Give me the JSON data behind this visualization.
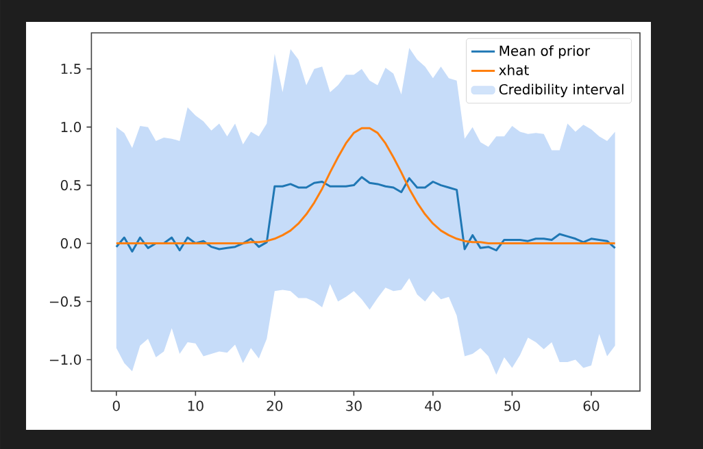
{
  "chart_data": {
    "type": "line",
    "x": [
      0,
      1,
      2,
      3,
      4,
      5,
      6,
      7,
      8,
      9,
      10,
      11,
      12,
      13,
      14,
      15,
      16,
      17,
      18,
      19,
      20,
      21,
      22,
      23,
      24,
      25,
      26,
      27,
      28,
      29,
      30,
      31,
      32,
      33,
      34,
      35,
      36,
      37,
      38,
      39,
      40,
      41,
      42,
      43,
      44,
      45,
      46,
      47,
      48,
      49,
      50,
      51,
      52,
      53,
      54,
      55,
      56,
      57,
      58,
      59,
      60,
      61,
      62,
      63
    ],
    "series": [
      {
        "name": "Mean of prior",
        "color": "#1f77b4",
        "values": [
          -0.03,
          0.05,
          -0.07,
          0.05,
          -0.04,
          0.0,
          0.0,
          0.05,
          -0.06,
          0.05,
          0.0,
          0.02,
          -0.03,
          -0.05,
          -0.04,
          -0.03,
          0.0,
          0.04,
          -0.03,
          0.01,
          0.49,
          0.49,
          0.51,
          0.48,
          0.48,
          0.52,
          0.53,
          0.49,
          0.49,
          0.49,
          0.5,
          0.57,
          0.52,
          0.51,
          0.49,
          0.48,
          0.44,
          0.56,
          0.48,
          0.48,
          0.53,
          0.5,
          0.48,
          0.46,
          -0.05,
          0.07,
          -0.04,
          -0.03,
          -0.06,
          0.03,
          0.03,
          0.03,
          0.02,
          0.04,
          0.04,
          0.03,
          0.08,
          0.06,
          0.04,
          0.01,
          0.04,
          0.03,
          0.02,
          -0.04
        ]
      },
      {
        "name": "xhat",
        "color": "#ff7f0e",
        "values": [
          0,
          0,
          0,
          0,
          0,
          0,
          0,
          0,
          0,
          0,
          0,
          0,
          0,
          0,
          0,
          0,
          0,
          0.01,
          0.01,
          0.02,
          0.04,
          0.07,
          0.11,
          0.17,
          0.25,
          0.35,
          0.47,
          0.61,
          0.74,
          0.86,
          0.95,
          0.99,
          0.99,
          0.95,
          0.86,
          0.74,
          0.61,
          0.47,
          0.35,
          0.25,
          0.17,
          0.11,
          0.07,
          0.04,
          0.02,
          0.01,
          0.01,
          0,
          0,
          0,
          0,
          0,
          0,
          0,
          0,
          0,
          0,
          0,
          0,
          0,
          0,
          0,
          0,
          0
        ]
      },
      {
        "name": "Credibility interval",
        "type": "area",
        "color": "#c6dcf9",
        "values": [
          null,
          null,
          null,
          null,
          null,
          null,
          null,
          null,
          null,
          null,
          null,
          null,
          null,
          null,
          null,
          null,
          null,
          null,
          null,
          null,
          null,
          null,
          null,
          null,
          null,
          null,
          null,
          null,
          null,
          null,
          null,
          null,
          null,
          null,
          null,
          null,
          null,
          null,
          null,
          null,
          null,
          null,
          null,
          null,
          null,
          null,
          null,
          null,
          null,
          null,
          null,
          null,
          null,
          null,
          null,
          null,
          null,
          null,
          null,
          null,
          null,
          null,
          null,
          null
        ],
        "upper": [
          1.0,
          0.95,
          0.82,
          1.01,
          1.0,
          0.88,
          0.91,
          0.9,
          0.88,
          1.17,
          1.1,
          1.05,
          0.97,
          1.03,
          0.92,
          1.03,
          0.85,
          0.96,
          0.92,
          1.03,
          1.63,
          1.3,
          1.67,
          1.58,
          1.36,
          1.5,
          1.52,
          1.3,
          1.36,
          1.45,
          1.45,
          1.5,
          1.4,
          1.36,
          1.51,
          1.46,
          1.28,
          1.68,
          1.58,
          1.52,
          1.42,
          1.52,
          1.42,
          1.4,
          0.9,
          1.0,
          0.87,
          0.83,
          0.92,
          0.92,
          1.01,
          0.96,
          0.94,
          0.95,
          0.94,
          0.8,
          0.8,
          1.03,
          0.96,
          1.02,
          0.98,
          0.92,
          0.88,
          0.96
        ],
        "lower": [
          -0.9,
          -1.03,
          -1.1,
          -0.88,
          -0.82,
          -0.98,
          -0.93,
          -0.73,
          -0.95,
          -0.85,
          -0.86,
          -0.97,
          -0.95,
          -0.93,
          -0.94,
          -0.87,
          -1.03,
          -0.9,
          -0.99,
          -0.82,
          -0.41,
          -0.4,
          -0.41,
          -0.47,
          -0.47,
          -0.5,
          -0.55,
          -0.35,
          -0.5,
          -0.46,
          -0.41,
          -0.48,
          -0.57,
          -0.47,
          -0.38,
          -0.41,
          -0.4,
          -0.3,
          -0.44,
          -0.5,
          -0.41,
          -0.48,
          -0.46,
          -0.62,
          -0.97,
          -0.95,
          -0.9,
          -0.97,
          -1.13,
          -0.98,
          -1.07,
          -0.96,
          -0.81,
          -0.85,
          -0.91,
          -0.85,
          -1.02,
          -1.02,
          -1.0,
          -1.07,
          -1.05,
          -0.78,
          -0.97,
          -0.88
        ]
      }
    ],
    "xlim": [
      -3.15,
      66.15
    ],
    "xticks": [
      0,
      10,
      20,
      30,
      40,
      50,
      60
    ],
    "ylim": [
      -1.27,
      1.81
    ],
    "yticks": [
      {
        "value": -1.0,
        "label": "−1.0"
      },
      {
        "value": -0.5,
        "label": "−0.5"
      },
      {
        "value": 0.0,
        "label": "0.0"
      },
      {
        "value": 0.5,
        "label": "0.5"
      },
      {
        "value": 1.0,
        "label": "1.0"
      },
      {
        "value": 1.5,
        "label": "1.5"
      }
    ],
    "legend": "top right",
    "grid": false,
    "marker": "none",
    "line_style": "solid"
  }
}
